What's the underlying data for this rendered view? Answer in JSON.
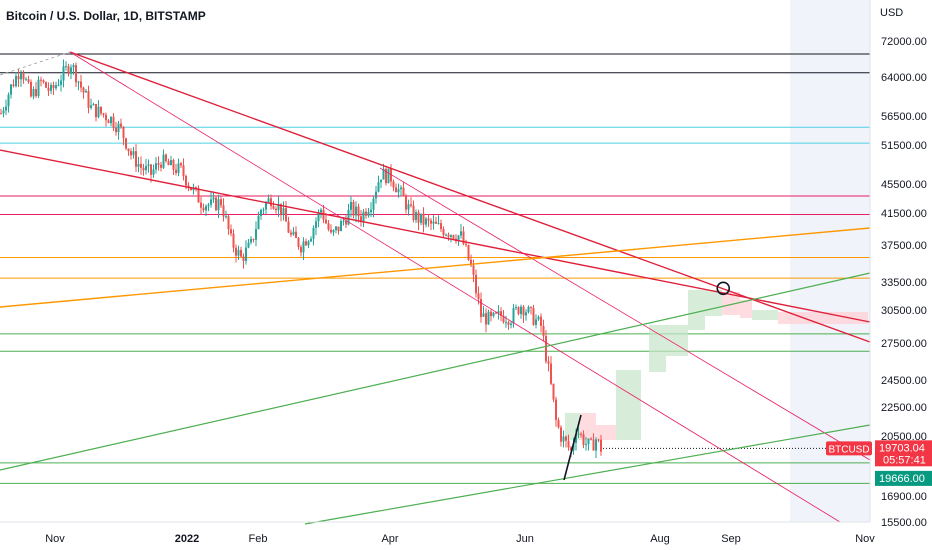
{
  "title": "Bitcoin / U.S. Dollar, 1D, BITSTAMP",
  "colors": {
    "up": "#26a69a",
    "down": "#ef5350",
    "grid_black": "#131722",
    "cyan": "#4dd0e1",
    "pink": "#e91e63",
    "orange": "#ff9800",
    "green": "#4caf50",
    "red_trend": "#e0203a",
    "forecast_up": "#c8e6c9",
    "forecast_down": "#ffcdd2",
    "badge_red": "#f23645",
    "badge_green": "#089981"
  },
  "chart_data": {
    "type": "candlestick",
    "title": "Bitcoin / U.S. Dollar, 1D, BITSTAMP",
    "ylabel": "USD",
    "scale": "log",
    "ylim": [
      15000,
      76000
    ],
    "y_ticks": [
      "72000.00",
      "64000.00",
      "56500.00",
      "51500.00",
      "45500.00",
      "41500.00",
      "37500.00",
      "33500.00",
      "30500.00",
      "27500.00",
      "24500.00",
      "22500.00",
      "20500.00",
      "16900.00",
      "15500.00"
    ],
    "x_ticks": [
      {
        "label": "Nov",
        "bold": false
      },
      {
        "label": "2022",
        "bold": true
      },
      {
        "label": "Feb",
        "bold": false
      },
      {
        "label": "Apr",
        "bold": false
      },
      {
        "label": "Jun",
        "bold": false
      },
      {
        "label": "Aug",
        "bold": false
      },
      {
        "label": "Sep",
        "bold": false
      },
      {
        "label": "Nov",
        "bold": false
      }
    ],
    "horizontal_levels": [
      {
        "price": 69000,
        "color": "grid_black"
      },
      {
        "price": 64900,
        "color": "grid_black"
      },
      {
        "price": 54500,
        "color": "cyan"
      },
      {
        "price": 51800,
        "color": "cyan"
      },
      {
        "price": 43800,
        "color": "pink"
      },
      {
        "price": 41300,
        "color": "pink"
      },
      {
        "price": 36100,
        "color": "orange"
      },
      {
        "price": 33900,
        "color": "orange"
      },
      {
        "price": 28300,
        "color": "green"
      },
      {
        "price": 26800,
        "color": "green"
      },
      {
        "price": 18800,
        "color": "green"
      },
      {
        "price": 17600,
        "color": "green"
      }
    ],
    "current_price": {
      "value": "19703.04",
      "countdown": "05:57:41",
      "symbol": "BTCUSD"
    },
    "green_label": "19666.00",
    "candles_anchor": [
      [
        0,
        57000
      ],
      [
        10,
        62000
      ],
      [
        20,
        66000
      ],
      [
        30,
        60000
      ],
      [
        40,
        63000
      ],
      [
        50,
        61000
      ],
      [
        60,
        64000
      ],
      [
        70,
        67000
      ],
      [
        80,
        62000
      ],
      [
        90,
        58000
      ],
      [
        100,
        57000
      ],
      [
        110,
        56000
      ],
      [
        120,
        54000
      ],
      [
        130,
        50000
      ],
      [
        140,
        48000
      ],
      [
        150,
        47000
      ],
      [
        160,
        49000
      ],
      [
        170,
        48000
      ],
      [
        180,
        47500
      ],
      [
        190,
        45000
      ],
      [
        200,
        43000
      ],
      [
        210,
        42500
      ],
      [
        220,
        43000
      ],
      [
        230,
        38000
      ],
      [
        240,
        36000
      ],
      [
        250,
        37500
      ],
      [
        260,
        42000
      ],
      [
        270,
        43500
      ],
      [
        280,
        42000
      ],
      [
        290,
        38500
      ],
      [
        300,
        37500
      ],
      [
        310,
        39000
      ],
      [
        320,
        42000
      ],
      [
        330,
        38500
      ],
      [
        340,
        40000
      ],
      [
        350,
        42000
      ],
      [
        360,
        41000
      ],
      [
        370,
        43000
      ],
      [
        380,
        47000
      ],
      [
        390,
        46500
      ],
      [
        400,
        44000
      ],
      [
        410,
        41500
      ],
      [
        420,
        40500
      ],
      [
        430,
        40000
      ],
      [
        440,
        39500
      ],
      [
        450,
        39000
      ],
      [
        460,
        38500
      ],
      [
        470,
        35000
      ],
      [
        480,
        30000
      ],
      [
        490,
        29500
      ],
      [
        500,
        30000
      ],
      [
        510,
        29800
      ],
      [
        520,
        31000
      ],
      [
        530,
        30000
      ],
      [
        540,
        29000
      ],
      [
        550,
        24000
      ],
      [
        555,
        21500
      ],
      [
        560,
        20500
      ],
      [
        565,
        20000
      ],
      [
        570,
        19500
      ],
      [
        575,
        21000
      ],
      [
        580,
        20500
      ],
      [
        585,
        20000
      ],
      [
        590,
        19800
      ],
      [
        595,
        20300
      ],
      [
        600,
        19700
      ]
    ],
    "annotations": {
      "circle_marker": {
        "x_frac": 0.775,
        "price": 32800
      }
    }
  }
}
